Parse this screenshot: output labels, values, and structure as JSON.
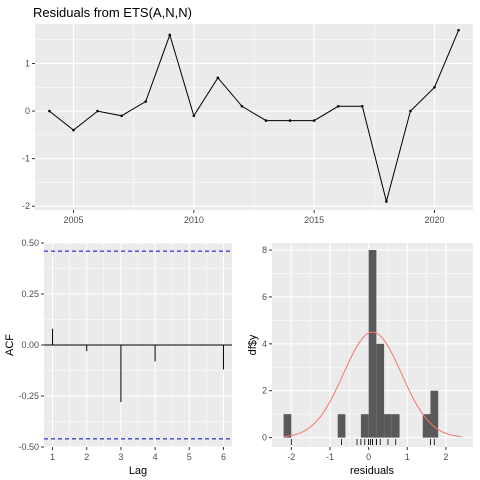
{
  "chart_data": [
    {
      "id": "residuals",
      "type": "line",
      "title": "Residuals from ETS(A,N,N)",
      "xlabel": "",
      "ylabel": "",
      "xlim": [
        2003.4,
        2021.6
      ],
      "ylim": [
        -2.08,
        1.83
      ],
      "xticks": [
        2005,
        2010,
        2015,
        2020
      ],
      "xminor": [
        2007.5,
        2012.5,
        2017.5
      ],
      "yticks": [
        -2,
        -1,
        0,
        1
      ],
      "yminor": [
        -1.5,
        -0.5,
        0.5,
        1.5
      ],
      "x": [
        2004,
        2005,
        2006,
        2007,
        2008,
        2009,
        2010,
        2011,
        2012,
        2013,
        2014,
        2015,
        2016,
        2017,
        2018,
        2019,
        2020,
        2021
      ],
      "y": [
        0.0,
        -0.4,
        0.0,
        -0.1,
        0.2,
        1.6,
        -0.1,
        0.7,
        0.1,
        -0.2,
        -0.2,
        -0.2,
        0.1,
        0.1,
        -1.9,
        0.0,
        0.5,
        1.7
      ],
      "line_color": "#000000",
      "grid": true
    },
    {
      "id": "acf",
      "type": "bar",
      "xlabel": "Lag",
      "ylabel": "ACF",
      "xlim": [
        0.75,
        6.25
      ],
      "ylim": [
        -0.5,
        0.5
      ],
      "xticks": [
        1,
        2,
        3,
        4,
        5,
        6
      ],
      "yticks": [
        -0.5,
        -0.25,
        0.0,
        0.25,
        0.5
      ],
      "ytick_labels": [
        "-0.50",
        "-0.25",
        "0.00",
        "0.25",
        "0.50"
      ],
      "lags": [
        1,
        2,
        3,
        4,
        5,
        6
      ],
      "values": [
        0.08,
        -0.03,
        -0.28,
        -0.08,
        0.0,
        -0.12
      ],
      "ci": 0.46,
      "ci_color": "#0000cc",
      "grid": true
    },
    {
      "id": "histogram",
      "type": "bar",
      "xlabel": "residuals",
      "ylabel": "df$y",
      "xlim": [
        -2.5,
        2.7
      ],
      "ylim": [
        -0.4,
        8.3
      ],
      "xticks": [
        -2,
        -1,
        0,
        1,
        2
      ],
      "yticks": [
        0,
        2,
        4,
        6,
        8
      ],
      "bin_width": 0.2,
      "bins": [
        {
          "start": -2.2,
          "count": 1
        },
        {
          "start": -0.8,
          "count": 1
        },
        {
          "start": -0.2,
          "count": 1
        },
        {
          "start": 0.0,
          "count": 8
        },
        {
          "start": 0.2,
          "count": 4
        },
        {
          "start": 0.4,
          "count": 1
        },
        {
          "start": 0.6,
          "count": 1
        },
        {
          "start": 1.4,
          "count": 1
        },
        {
          "start": 1.6,
          "count": 2
        }
      ],
      "bar_color": "#595959",
      "density_curve": {
        "mean": 0.1,
        "sd": 0.75,
        "scale": 4.5,
        "from": -2.2,
        "to": 2.4,
        "color": "#f8766d"
      },
      "rug": [
        -2.0,
        -0.7,
        -0.3,
        -0.2,
        -0.1,
        0.0,
        0.0,
        0.05,
        0.1,
        0.1,
        0.1,
        0.2,
        0.2,
        0.3,
        0.5,
        0.7,
        1.6,
        1.7
      ],
      "grid": true
    }
  ]
}
